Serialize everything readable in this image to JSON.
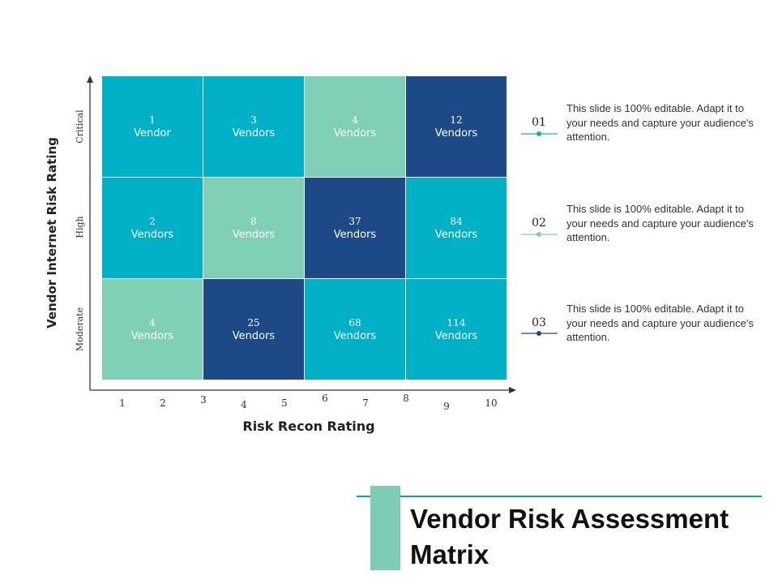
{
  "title": "Vendor Risk Assessment Matrix",
  "colors": {
    "teal": "#00b0c7",
    "mint": "#7ecfb5",
    "navy": "#1d4a86",
    "accent_line": "#00a7bd"
  },
  "y_axis": {
    "title": "Vendor Internet Risk Rating",
    "rows": [
      "Critical",
      "High",
      "Moderate"
    ]
  },
  "x_axis": {
    "title": "Risk Recon Rating",
    "ticks": [
      "1",
      "2",
      "3",
      "4",
      "5",
      "6",
      "7",
      "8",
      "9",
      "10"
    ]
  },
  "matrix": [
    [
      {
        "num": "1",
        "label": "Vendor",
        "color": "teal"
      },
      {
        "num": "3",
        "label": "Vendors",
        "color": "teal"
      },
      {
        "num": "4",
        "label": "Vendors",
        "color": "mint"
      },
      {
        "num": "12",
        "label": "Vendors",
        "color": "navy"
      }
    ],
    [
      {
        "num": "2",
        "label": "Vendors",
        "color": "teal"
      },
      {
        "num": "8",
        "label": "Vendors",
        "color": "mint"
      },
      {
        "num": "37",
        "label": "Vendors",
        "color": "navy"
      },
      {
        "num": "84",
        "label": "Vendors",
        "color": "teal"
      }
    ],
    [
      {
        "num": "4",
        "label": "Vendors",
        "color": "mint"
      },
      {
        "num": "25",
        "label": "Vendors",
        "color": "navy"
      },
      {
        "num": "68",
        "label": "Vendors",
        "color": "teal"
      },
      {
        "num": "114",
        "label": "Vendors",
        "color": "teal"
      }
    ]
  ],
  "notes": [
    {
      "number": "01",
      "text": "This slide is 100% editable. Adapt it to your needs and capture your audience's attention.",
      "color": "#1fa9b8"
    },
    {
      "number": "02",
      "text": "This slide is 100% editable. Adapt it to your needs and capture your audience's attention.",
      "color": "#7ecfb5"
    },
    {
      "number": "03",
      "text": "This slide is 100% editable. Adapt it to your needs and capture your audience's attention.",
      "color": "#1d4a86"
    }
  ]
}
